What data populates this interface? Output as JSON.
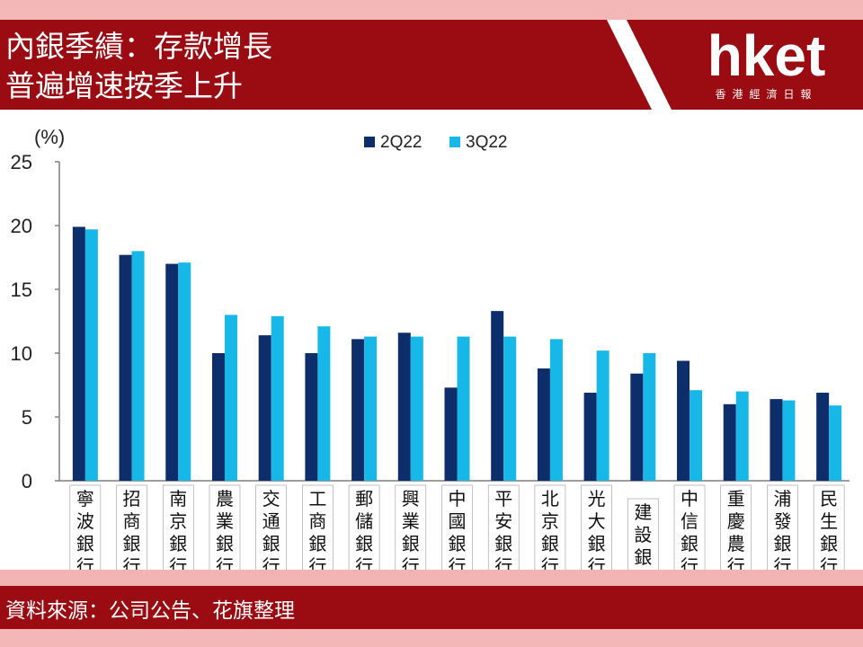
{
  "header": {
    "title_line1": "內銀季績：存款增長",
    "title_line2": "普遍增速按季上升",
    "logo": "hket",
    "logo_sub": "香港經濟日報"
  },
  "footer": {
    "source": "資料來源：公司公告、花旗整理"
  },
  "colors": {
    "series_2q22": "#0d2d6b",
    "series_3q22": "#17b8e8",
    "header_bg": "#9b0b12"
  },
  "chart_data": {
    "type": "bar",
    "unit_label": "(%)",
    "ylim": [
      0,
      25
    ],
    "yticks": [
      0,
      5,
      10,
      15,
      20,
      25
    ],
    "legend_position": "top-center",
    "categories": [
      "寧波銀行",
      "招商銀行",
      "南京銀行",
      "農業銀行",
      "交通銀行",
      "工商銀行",
      "郵儲銀行",
      "興業銀行",
      "中國銀行",
      "平安銀行",
      "北京銀行",
      "光大銀行",
      "建設銀行",
      "中信銀行",
      "重慶農行",
      "浦發銀行",
      "民生銀行"
    ],
    "series": [
      {
        "name": "2Q22",
        "values": [
          19.9,
          17.7,
          17.0,
          10.0,
          11.4,
          10.0,
          11.1,
          11.6,
          7.3,
          13.3,
          8.8,
          6.9,
          8.4,
          9.4,
          6.0,
          6.4,
          6.9
        ]
      },
      {
        "name": "3Q22",
        "values": [
          19.7,
          18.0,
          17.1,
          13.0,
          12.9,
          12.1,
          11.3,
          11.3,
          11.3,
          11.3,
          11.1,
          10.2,
          10.0,
          7.1,
          7.0,
          6.3,
          5.9
        ]
      }
    ]
  }
}
